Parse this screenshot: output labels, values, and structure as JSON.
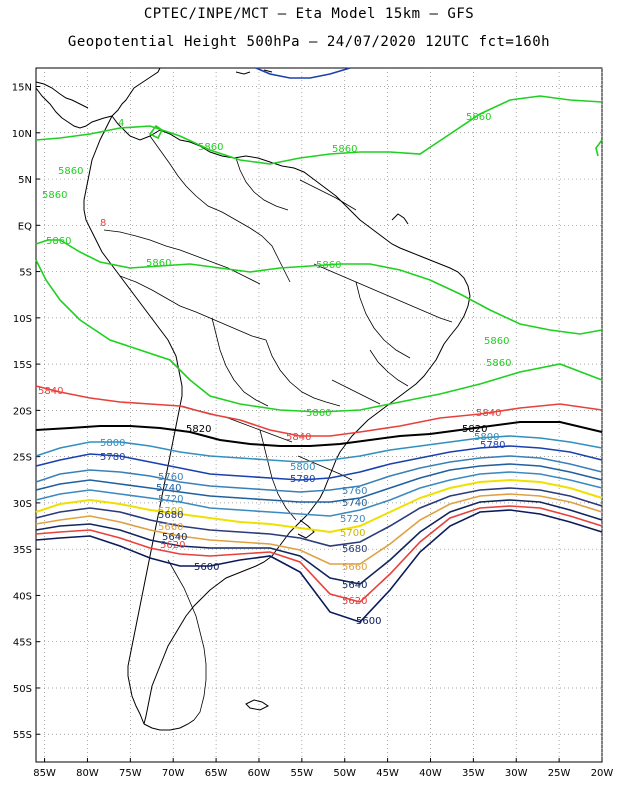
{
  "title": {
    "line1": "CPTEC/INPE/MCT –  Eta Model 15km – GFS",
    "line2": "Geopotential Height 500hPa – 24/07/2020 12UTC fct=160h"
  },
  "axes": {
    "lat_labels": [
      "15N",
      "10N",
      "5N",
      "EQ",
      "5S",
      "10S",
      "15S",
      "20S",
      "25S",
      "30S",
      "35S",
      "40S",
      "45S",
      "50S",
      "55S"
    ],
    "lon_labels": [
      "85W",
      "80W",
      "75W",
      "70W",
      "65W",
      "60W",
      "55W",
      "50W",
      "45W",
      "40W",
      "35W",
      "30W",
      "25W",
      "20W"
    ],
    "lat_range": [
      -58,
      17
    ],
    "lon_range": [
      -86,
      -20
    ],
    "grid": "dotted"
  },
  "colors": {
    "c5600": "#0a1a5a",
    "c5620": "#e8403a",
    "c5640": "#12265e",
    "c5660": "#e0a040",
    "c5680": "#2a3a7a",
    "c5700": "#f0e000",
    "c5720": "#3a8ac0",
    "c5740": "#2060a0",
    "c5760": "#3a80b8",
    "c5780": "#1a40b0",
    "c5800": "#3090c0",
    "c5820": "#000000",
    "c5840": "#e8403a",
    "c5860": "#20d020",
    "coast": "#000000"
  },
  "contours": {
    "label_5600": "5600",
    "label_5620": "5620",
    "label_5640": "5640",
    "label_5660": "5660",
    "label_5680": "5680",
    "label_5700": "5700",
    "label_5720": "5720",
    "label_5740": "5740",
    "label_5760": "5760",
    "label_5780": "5780",
    "label_5800": "5800",
    "label_5820": "5820",
    "label_5840": "5840",
    "label_5860": "5860",
    "label_small_4": "4",
    "label_small_8": "8"
  }
}
